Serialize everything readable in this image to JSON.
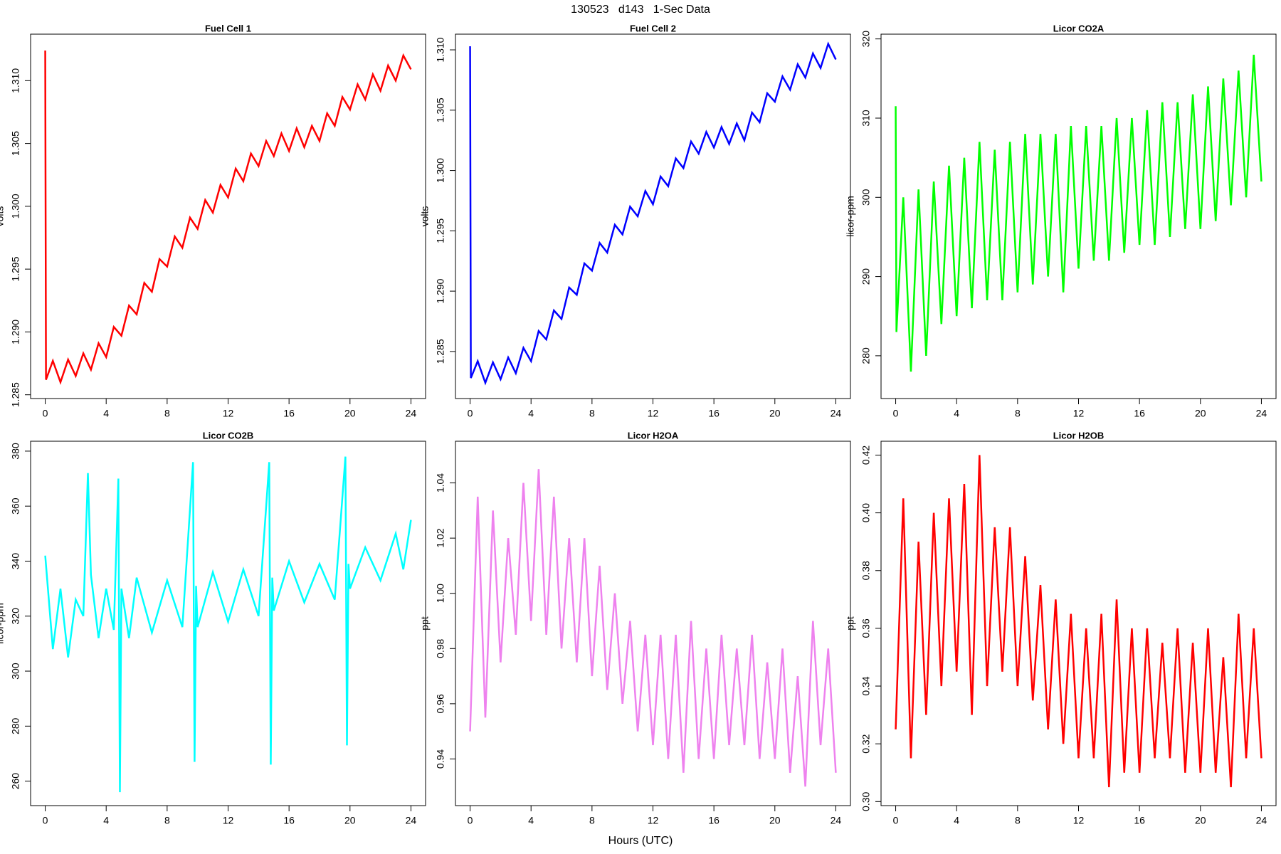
{
  "header": {
    "title": "130523   d143   1-Sec Data"
  },
  "footer": {
    "xlabel": "Hours (UTC)"
  },
  "chart_data": [
    {
      "type": "line",
      "title": "Fuel Cell 1",
      "ylabel": "volts",
      "color": "#ff0000",
      "xlim": [
        -0.96,
        24.96
      ],
      "ylim": [
        1.2847,
        1.3137
      ],
      "xticks": [
        0,
        4,
        8,
        12,
        16,
        20,
        24
      ],
      "yticks": [
        1.285,
        {
          "value": 1.29,
          "label": "1.290"
        },
        1.295,
        {
          "value": 1.3,
          "label": "1.300"
        },
        1.305,
        {
          "value": 1.31,
          "label": "1.310"
        }
      ],
      "x": [
        0,
        0.05,
        0.5,
        1,
        1.5,
        2,
        2.5,
        3,
        3.5,
        4,
        4.5,
        5,
        5.5,
        6,
        6.5,
        7,
        7.5,
        8,
        8.5,
        9,
        9.5,
        10,
        10.5,
        11,
        11.5,
        12,
        12.5,
        13,
        13.5,
        14,
        14.5,
        15,
        15.5,
        16,
        16.5,
        17,
        17.5,
        18,
        18.5,
        19,
        19.5,
        20,
        20.5,
        21,
        21.5,
        22,
        22.5,
        23,
        23.5,
        24
      ],
      "values": [
        1.3124,
        1.2862,
        1.2877,
        1.286,
        1.2878,
        1.2865,
        1.2883,
        1.287,
        1.2891,
        1.288,
        1.2904,
        1.2897,
        1.2921,
        1.2914,
        1.2939,
        1.2932,
        1.2958,
        1.2952,
        1.2976,
        1.2967,
        1.2991,
        1.2982,
        1.3005,
        1.2995,
        1.3017,
        1.3007,
        1.303,
        1.302,
        1.3042,
        1.3032,
        1.3052,
        1.304,
        1.3058,
        1.3044,
        1.3062,
        1.3047,
        1.3064,
        1.3052,
        1.3074,
        1.3064,
        1.3087,
        1.3077,
        1.3097,
        1.3085,
        1.3105,
        1.3092,
        1.3112,
        1.31,
        1.312,
        1.3109
      ]
    },
    {
      "type": "line",
      "title": "Fuel Cell 2",
      "ylabel": "volts",
      "color": "#0000ff",
      "xlim": [
        -0.96,
        24.96
      ],
      "ylim": [
        1.2811,
        1.3113
      ],
      "xticks": [
        0,
        4,
        8,
        12,
        16,
        20,
        24
      ],
      "yticks": [
        1.285,
        {
          "value": 1.29,
          "label": "1.290"
        },
        1.295,
        {
          "value": 1.3,
          "label": "1.300"
        },
        1.305,
        {
          "value": 1.31,
          "label": "1.310"
        }
      ],
      "x": [
        0,
        0.05,
        0.5,
        1,
        1.5,
        2,
        2.5,
        3,
        3.5,
        4,
        4.5,
        5,
        5.5,
        6,
        6.5,
        7,
        7.5,
        8,
        8.5,
        9,
        9.5,
        10,
        10.5,
        11,
        11.5,
        12,
        12.5,
        13,
        13.5,
        14,
        14.5,
        15,
        15.5,
        16,
        16.5,
        17,
        17.5,
        18,
        18.5,
        19,
        19.5,
        20,
        20.5,
        21,
        21.5,
        22,
        22.5,
        23,
        23.5,
        24
      ],
      "values": [
        1.3103,
        1.2828,
        1.2842,
        1.2824,
        1.2841,
        1.2827,
        1.2845,
        1.2832,
        1.2853,
        1.2842,
        1.2867,
        1.286,
        1.2884,
        1.2877,
        1.2903,
        1.2897,
        1.2923,
        1.2917,
        1.294,
        1.2932,
        1.2955,
        1.2947,
        1.297,
        1.2962,
        1.2983,
        1.2972,
        1.2995,
        1.2987,
        1.301,
        1.3002,
        1.3024,
        1.3014,
        1.3032,
        1.3019,
        1.3036,
        1.3022,
        1.3039,
        1.3025,
        1.3048,
        1.304,
        1.3064,
        1.3057,
        1.3078,
        1.3067,
        1.3088,
        1.3077,
        1.3097,
        1.3085,
        1.3105,
        1.3092
      ]
    },
    {
      "type": "line",
      "title": "Licor CO2A",
      "ylabel": "licor-ppm",
      "color": "#00ff00",
      "xlim": [
        -0.96,
        24.96
      ],
      "ylim": [
        274.6,
        320.6
      ],
      "xticks": [
        0,
        4,
        8,
        12,
        16,
        20,
        24
      ],
      "yticks": [
        280,
        290,
        300,
        310,
        320
      ],
      "x": [
        0,
        0.05,
        0.5,
        1,
        1.5,
        2,
        2.5,
        3,
        3.5,
        4,
        4.5,
        5,
        5.5,
        6,
        6.5,
        7,
        7.5,
        8,
        8.5,
        9,
        9.5,
        10,
        10.5,
        11,
        11.5,
        12,
        12.5,
        13,
        13.5,
        14,
        14.5,
        15,
        15.5,
        16,
        16.5,
        17,
        17.5,
        18,
        18.5,
        19,
        19.5,
        20,
        20.5,
        21,
        21.5,
        22,
        22.5,
        23,
        23.5,
        24
      ],
      "values": [
        311.5,
        283,
        300,
        278,
        301,
        280,
        302,
        284,
        304,
        285,
        305,
        286,
        307,
        287,
        306,
        287,
        307,
        288,
        308,
        289,
        308,
        290,
        308,
        288,
        309,
        291,
        309,
        292,
        309,
        292,
        310,
        293,
        310,
        294,
        311,
        294,
        312,
        295,
        312,
        296,
        313,
        296,
        314,
        297,
        315,
        299,
        316,
        300,
        318,
        302
      ]
    },
    {
      "type": "line",
      "title": "Licor CO2B",
      "ylabel": "licor-ppm",
      "color": "#00ffff",
      "xlim": [
        -0.96,
        24.96
      ],
      "ylim": [
        251.1,
        383.6
      ],
      "xticks": [
        0,
        4,
        8,
        12,
        16,
        20,
        24
      ],
      "yticks": [
        260,
        280,
        300,
        320,
        340,
        360,
        380
      ],
      "x": [
        0,
        0.5,
        1,
        1.5,
        2,
        2.5,
        2.8,
        3,
        3.5,
        4,
        4.5,
        4.8,
        4.9,
        5,
        5.5,
        6,
        7,
        8,
        9,
        9.7,
        9.8,
        9.9,
        10,
        11,
        12,
        13,
        14,
        14.7,
        14.8,
        14.9,
        15,
        16,
        17,
        18,
        19,
        19.7,
        19.8,
        19.9,
        20,
        21,
        22,
        23,
        23.5,
        24
      ],
      "values": [
        342,
        308,
        330,
        305,
        326,
        320,
        372,
        335,
        312,
        330,
        315,
        370,
        256,
        330,
        312,
        334,
        314,
        333,
        316,
        376,
        267,
        331,
        316,
        336,
        318,
        337,
        320,
        376,
        266,
        334,
        322,
        340,
        325,
        339,
        326,
        378,
        273,
        339,
        330,
        345,
        333,
        350,
        337,
        355
      ]
    },
    {
      "type": "line",
      "title": "Licor H2OA",
      "ylabel": "ppt",
      "color": "#ee82ee",
      "xlim": [
        -0.96,
        24.96
      ],
      "ylim": [
        0.9231,
        1.0551
      ],
      "xticks": [
        0,
        4,
        8,
        12,
        16,
        20,
        24
      ],
      "yticks": [
        0.94,
        0.96,
        0.98,
        {
          "value": 1.0,
          "label": "1.00"
        },
        1.02,
        1.04
      ],
      "x": [
        0,
        0.5,
        1,
        1.5,
        2,
        2.5,
        3,
        3.5,
        4,
        4.5,
        5,
        5.5,
        6,
        6.5,
        7,
        7.5,
        8,
        8.5,
        9,
        9.5,
        10,
        10.5,
        11,
        11.5,
        12,
        12.5,
        13,
        13.5,
        14,
        14.5,
        15,
        15.5,
        16,
        16.5,
        17,
        17.5,
        18,
        18.5,
        19,
        19.5,
        20,
        20.5,
        21,
        21.5,
        22,
        22.5,
        23,
        23.5,
        24
      ],
      "values": [
        0.95,
        1.035,
        0.955,
        1.03,
        0.975,
        1.02,
        0.985,
        1.04,
        0.99,
        1.045,
        0.985,
        1.035,
        0.98,
        1.02,
        0.975,
        1.02,
        0.97,
        1.01,
        0.965,
        1.0,
        0.96,
        0.99,
        0.95,
        0.985,
        0.945,
        0.985,
        0.94,
        0.985,
        0.935,
        0.99,
        0.94,
        0.98,
        0.94,
        0.985,
        0.945,
        0.98,
        0.945,
        0.985,
        0.94,
        0.975,
        0.94,
        0.98,
        0.935,
        0.97,
        0.93,
        0.99,
        0.945,
        0.98,
        0.935
      ]
    },
    {
      "type": "line",
      "title": "Licor H2OB",
      "ylabel": "ppt",
      "color": "#ff0000",
      "xlim": [
        -0.96,
        24.96
      ],
      "ylim": [
        0.2986,
        0.4248
      ],
      "xticks": [
        0,
        4,
        8,
        12,
        16,
        20,
        24
      ],
      "yticks": [
        {
          "value": 0.3,
          "label": "0.30"
        },
        0.32,
        0.34,
        0.36,
        0.38,
        {
          "value": 0.4,
          "label": "0.40"
        },
        0.42
      ],
      "x": [
        0,
        0.5,
        1,
        1.5,
        2,
        2.5,
        3,
        3.5,
        4,
        4.5,
        5,
        5.5,
        6,
        6.5,
        7,
        7.5,
        8,
        8.5,
        9,
        9.5,
        10,
        10.5,
        11,
        11.5,
        12,
        12.5,
        13,
        13.5,
        14,
        14.5,
        15,
        15.5,
        16,
        16.5,
        17,
        17.5,
        18,
        18.5,
        19,
        19.5,
        20,
        20.5,
        21,
        21.5,
        22,
        22.5,
        23,
        23.5,
        24
      ],
      "values": [
        0.325,
        0.405,
        0.315,
        0.39,
        0.33,
        0.4,
        0.34,
        0.405,
        0.345,
        0.41,
        0.33,
        0.42,
        0.34,
        0.395,
        0.345,
        0.395,
        0.34,
        0.385,
        0.335,
        0.375,
        0.325,
        0.37,
        0.32,
        0.365,
        0.315,
        0.36,
        0.315,
        0.365,
        0.305,
        0.37,
        0.31,
        0.36,
        0.31,
        0.36,
        0.315,
        0.355,
        0.315,
        0.36,
        0.31,
        0.355,
        0.31,
        0.36,
        0.31,
        0.35,
        0.305,
        0.365,
        0.315,
        0.36,
        0.315
      ]
    }
  ]
}
